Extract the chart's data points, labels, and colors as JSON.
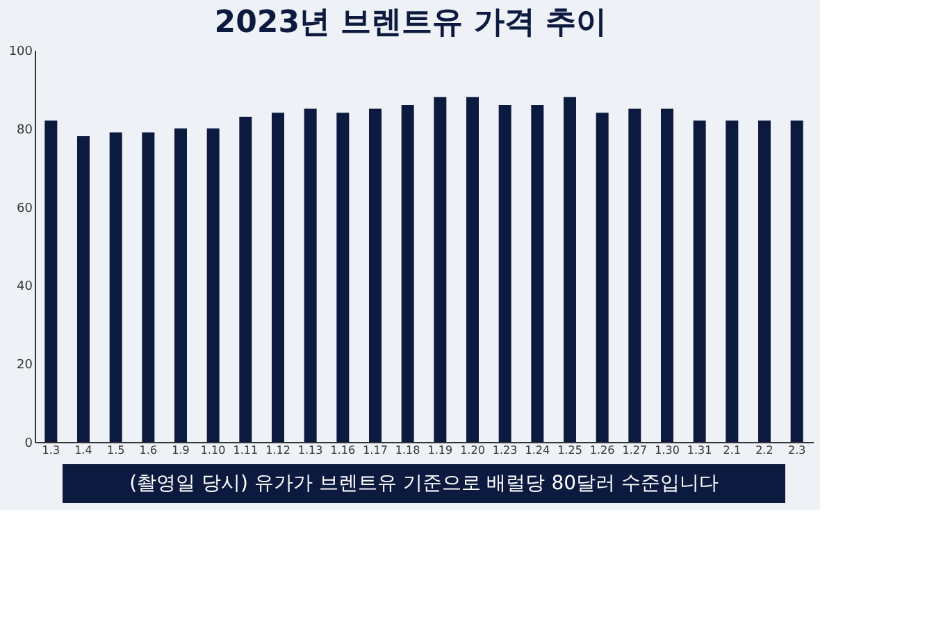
{
  "chart_data": {
    "type": "bar",
    "title": "2023년 브렌트유 가격 추이",
    "categories": [
      "1.3",
      "1.4",
      "1.5",
      "1.6",
      "1.9",
      "1.10",
      "1.11",
      "1.12",
      "1.13",
      "1.16",
      "1.17",
      "1.18",
      "1.19",
      "1.20",
      "1.23",
      "1.24",
      "1.25",
      "1.26",
      "1.27",
      "1.30",
      "1.31",
      "2.1",
      "2.2",
      "2.3"
    ],
    "values": [
      82,
      78,
      79,
      79,
      80,
      80,
      83,
      84,
      85,
      84,
      85,
      86,
      88,
      88,
      86,
      86,
      88,
      84,
      85,
      85,
      82,
      82,
      82,
      82
    ],
    "color": "#0d1a3f",
    "ylim": [
      0,
      100
    ],
    "yticks": [
      0,
      20,
      40,
      60,
      80,
      100
    ],
    "annotations": [
      "(촬영일 당시) 유가가 브렌트유 기준으로 배럴당 80달러 수준입니다"
    ]
  }
}
